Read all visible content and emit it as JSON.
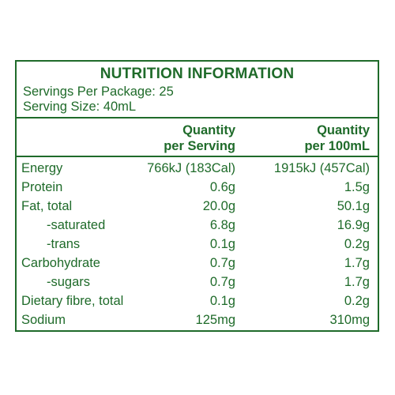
{
  "header": {
    "title": "NUTRITION INFORMATION",
    "servings_per_package": "Servings Per Package: 25",
    "serving_size": "Serving Size: 40mL"
  },
  "columns": {
    "per_serving_line1": "Quantity",
    "per_serving_line2": "per Serving",
    "per_100ml_line1": "Quantity",
    "per_100ml_line2": "per 100mL"
  },
  "rows": [
    {
      "label": "Energy",
      "per_serving": "766kJ (183Cal)",
      "per_100ml": "1915kJ (457Cal)"
    },
    {
      "label": "Protein",
      "per_serving": "0.6g",
      "per_100ml": "1.5g"
    },
    {
      "label": "Fat, total",
      "per_serving": "20.0g",
      "per_100ml": "50.1g"
    },
    {
      "label": "-saturated",
      "per_serving": "6.8g",
      "per_100ml": "16.9g"
    },
    {
      "label": "-trans",
      "per_serving": "0.1g",
      "per_100ml": "0.2g"
    },
    {
      "label": "Carbohydrate",
      "per_serving": "0.7g",
      "per_100ml": "1.7g"
    },
    {
      "label": "-sugars",
      "per_serving": "0.7g",
      "per_100ml": "1.7g"
    },
    {
      "label": "Dietary fibre, total",
      "per_serving": "0.1g",
      "per_100ml": "0.2g"
    },
    {
      "label": "Sodium",
      "per_serving": "125mg",
      "per_100ml": "310mg"
    }
  ],
  "colors": {
    "text": "#1f6b2a",
    "border": "#1f6b2a",
    "background": "#ffffff"
  }
}
